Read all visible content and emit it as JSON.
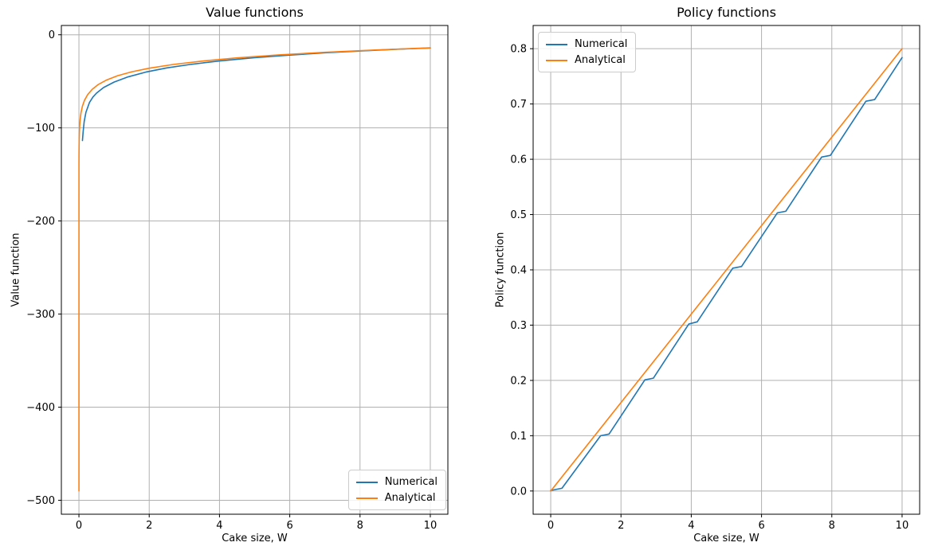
{
  "figure": {
    "background": "#ffffff",
    "grid_color": "#b0b0b0",
    "spine_color": "#000000"
  },
  "chart_data": [
    {
      "type": "line",
      "title": "Value functions",
      "xlabel": "Cake size, W",
      "ylabel": "Value function",
      "xlim": [
        -0.5,
        10.5
      ],
      "ylim": [
        -515,
        10
      ],
      "xticks": [
        0,
        2,
        4,
        6,
        8,
        10
      ],
      "xtick_labels": [
        "0",
        "2",
        "4",
        "6",
        "8",
        "10"
      ],
      "yticks": [
        0,
        -100,
        -200,
        -300,
        -400,
        -500
      ],
      "ytick_labels": [
        "0",
        "−100",
        "−200",
        "−300",
        "−400",
        "−500"
      ],
      "grid": true,
      "legend_position": "lower right",
      "series": [
        {
          "name": "Numerical",
          "color": "#1f77b4",
          "points": [
            [
              0.1,
              -113.6
            ],
            [
              0.12,
              -104
            ],
            [
              0.15,
              -93.1
            ],
            [
              0.2,
              -83.2
            ],
            [
              0.3,
              -72.7
            ],
            [
              0.4,
              -66.8
            ],
            [
              0.5,
              -62.7
            ],
            [
              0.7,
              -56.7
            ],
            [
              1.0,
              -50.8
            ],
            [
              1.4,
              -45.2
            ],
            [
              1.9,
              -40.1
            ],
            [
              2.5,
              -35.6
            ],
            [
              3.2,
              -31.7
            ],
            [
              4.0,
              -28.1
            ],
            [
              5.0,
              -24.6
            ],
            [
              6.0,
              -21.8
            ],
            [
              7.0,
              -19.4
            ],
            [
              8.0,
              -17.4
            ],
            [
              9.0,
              -15.6
            ],
            [
              10,
              -14.2
            ]
          ]
        },
        {
          "name": "Analytical",
          "color": "#ff7f0e",
          "points": [
            [
              0.0005,
              -490
            ],
            [
              0.001,
              -139.2
            ],
            [
              0.002,
              -129.8
            ],
            [
              0.004,
              -120.4
            ],
            [
              0.007,
              -112.8
            ],
            [
              0.012,
              -105.4
            ],
            [
              0.02,
              -98.5
            ],
            [
              0.035,
              -90.9
            ],
            [
              0.06,
              -83.5
            ],
            [
              0.1,
              -76.6
            ],
            [
              0.16,
              -70.2
            ],
            [
              0.25,
              -64.2
            ],
            [
              0.38,
              -58.5
            ],
            [
              0.55,
              -53.4
            ],
            [
              0.78,
              -48.7
            ],
            [
              1.1,
              -44.0
            ],
            [
              1.5,
              -39.8
            ],
            [
              2.0,
              -35.9
            ],
            [
              2.7,
              -31.8
            ],
            [
              3.5,
              -28.3
            ],
            [
              4.5,
              -24.8
            ],
            [
              5.7,
              -21.6
            ],
            [
              7.0,
              -18.8
            ],
            [
              8.5,
              -16.2
            ],
            [
              10,
              -14.0
            ]
          ]
        }
      ]
    },
    {
      "type": "line",
      "title": "Policy functions",
      "xlabel": "Cake size, W",
      "ylabel": "Policy function",
      "xlim": [
        -0.5,
        10.5
      ],
      "ylim": [
        -0.042,
        0.842
      ],
      "xticks": [
        0,
        2,
        4,
        6,
        8,
        10
      ],
      "xtick_labels": [
        "0",
        "2",
        "4",
        "6",
        "8",
        "10"
      ],
      "yticks": [
        0.0,
        0.1,
        0.2,
        0.3,
        0.4,
        0.5,
        0.6,
        0.7,
        0.8
      ],
      "ytick_labels": [
        "0.0",
        "0.1",
        "0.2",
        "0.3",
        "0.4",
        "0.5",
        "0.6",
        "0.7",
        "0.8"
      ],
      "grid": true,
      "legend_position": "upper left",
      "series": [
        {
          "name": "Numerical",
          "color": "#1f77b4",
          "points": [
            [
              0,
              0.001
            ],
            [
              0.32,
              0.005
            ],
            [
              1.42,
              0.1
            ],
            [
              1.66,
              0.103
            ],
            [
              2.68,
              0.201
            ],
            [
              2.92,
              0.204
            ],
            [
              3.93,
              0.302
            ],
            [
              4.17,
              0.306
            ],
            [
              5.18,
              0.403
            ],
            [
              5.43,
              0.406
            ],
            [
              6.45,
              0.503
            ],
            [
              6.69,
              0.506
            ],
            [
              7.71,
              0.604
            ],
            [
              7.96,
              0.607
            ],
            [
              8.97,
              0.705
            ],
            [
              9.22,
              0.708
            ],
            [
              10,
              0.784
            ]
          ]
        },
        {
          "name": "Analytical",
          "color": "#ff7f0e",
          "points": [
            [
              0,
              0.0
            ],
            [
              10,
              0.8
            ]
          ]
        }
      ]
    }
  ]
}
